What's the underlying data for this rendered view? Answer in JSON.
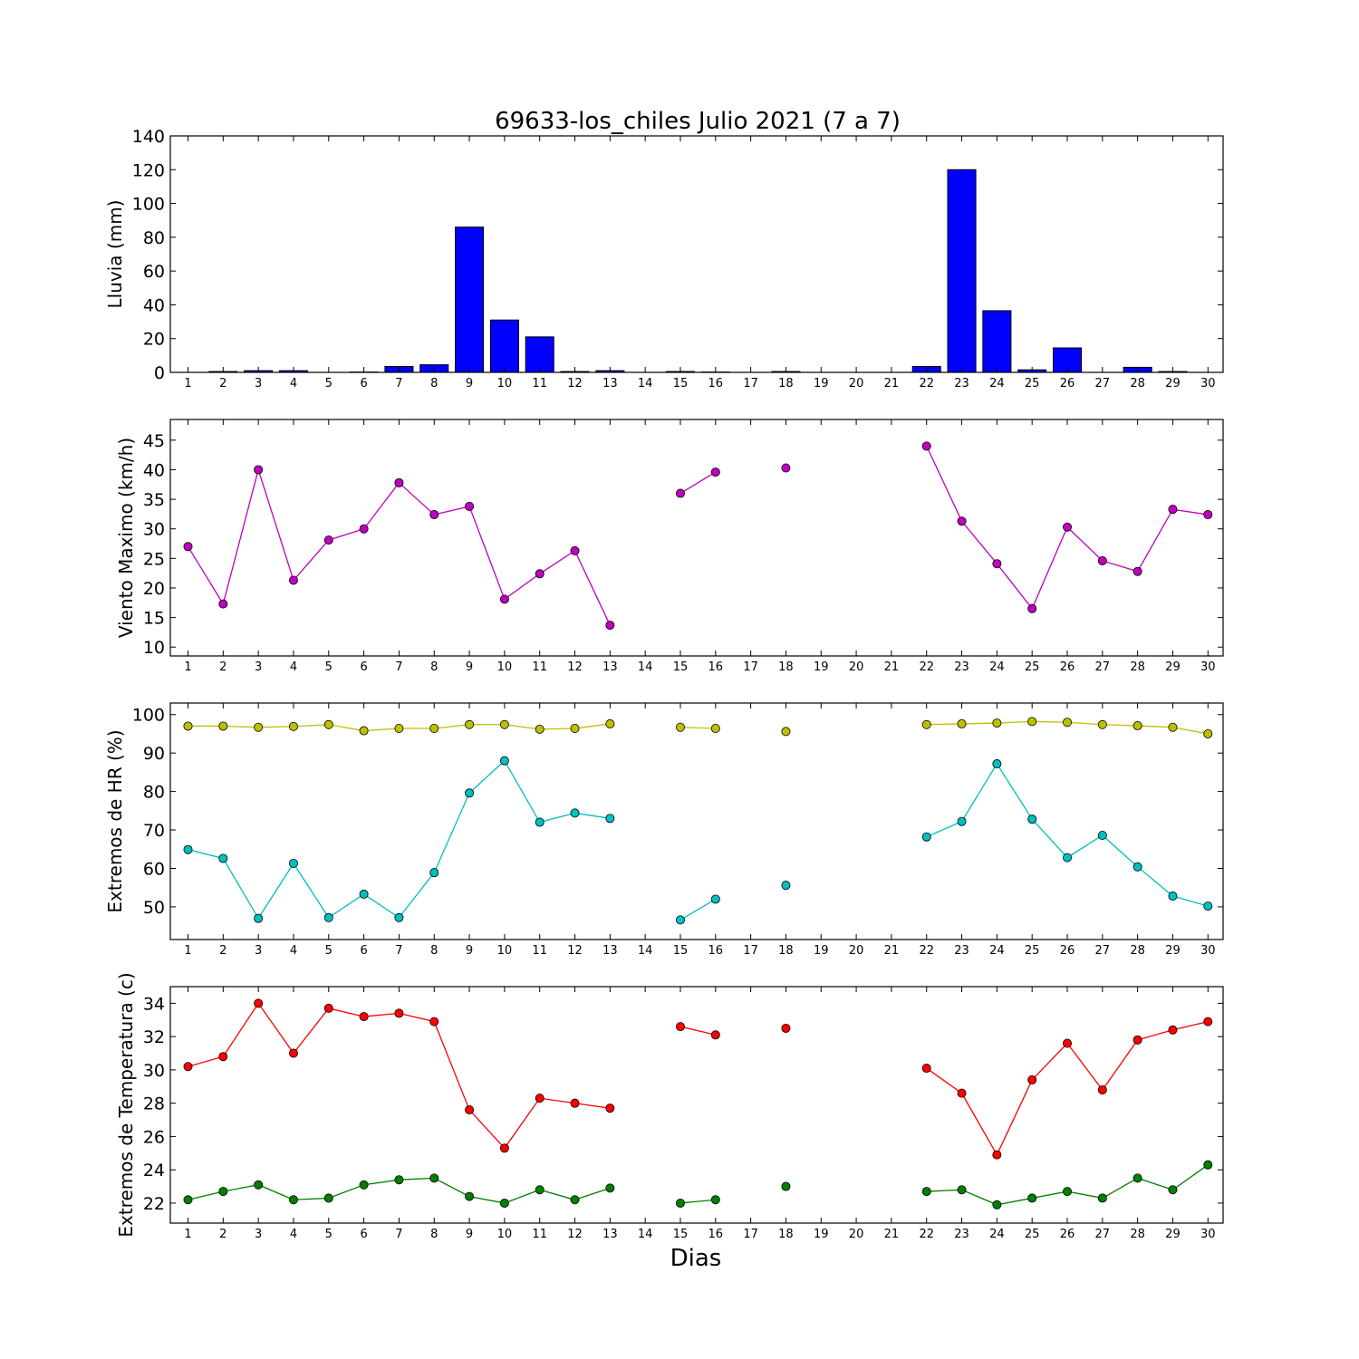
{
  "chart_data": [
    {
      "type": "bar",
      "title": "69633-los_chiles Julio 2021  (7 a 7)",
      "ylabel": "Lluvia (mm)",
      "xlabel": "",
      "categories": [
        "1",
        "2",
        "3",
        "4",
        "5",
        "6",
        "7",
        "8",
        "9",
        "10",
        "11",
        "12",
        "13",
        "14",
        "15",
        "16",
        "17",
        "18",
        "19",
        "20",
        "21",
        "22",
        "23",
        "24",
        "25",
        "26",
        "27",
        "28",
        "29",
        "30"
      ],
      "yticks": [
        0,
        20,
        40,
        60,
        80,
        100,
        120,
        140
      ],
      "ylim": [
        0,
        140
      ],
      "color": "#0000ff",
      "values": [
        0.0,
        0.5,
        1.0,
        1.0,
        0.0,
        0.2,
        3.5,
        4.5,
        86.0,
        31.0,
        21.0,
        0.5,
        1.0,
        0.0,
        0.5,
        0.2,
        0.0,
        0.5,
        0.0,
        0.0,
        0.0,
        3.5,
        120.0,
        36.5,
        1.5,
        14.5,
        0.0,
        3.0,
        0.5,
        0.0
      ]
    },
    {
      "type": "line",
      "title": "",
      "ylabel": "Viento Maximo (km/h)",
      "xlabel": "",
      "categories": [
        "1",
        "2",
        "3",
        "4",
        "5",
        "6",
        "7",
        "8",
        "9",
        "10",
        "11",
        "12",
        "13",
        "14",
        "15",
        "16",
        "17",
        "18",
        "19",
        "20",
        "21",
        "22",
        "23",
        "24",
        "25",
        "26",
        "27",
        "28",
        "29",
        "30"
      ],
      "yticks": [
        10,
        15,
        20,
        25,
        30,
        35,
        40,
        45
      ],
      "ylim": [
        8.5,
        48.5
      ],
      "series": [
        {
          "color": "#bf00bf",
          "values": [
            27.0,
            17.3,
            40.0,
            21.3,
            28.1,
            30.0,
            37.8,
            32.4,
            33.8,
            18.1,
            22.4,
            26.3,
            13.7,
            null,
            36.0,
            39.6,
            null,
            40.3,
            null,
            null,
            null,
            44.0,
            31.3,
            24.1,
            16.5,
            30.3,
            24.6,
            22.8,
            33.3,
            32.4
          ]
        }
      ]
    },
    {
      "type": "line",
      "title": "",
      "ylabel": "Extremos de HR (%)",
      "xlabel": "",
      "categories": [
        "1",
        "2",
        "3",
        "4",
        "5",
        "6",
        "7",
        "8",
        "9",
        "10",
        "11",
        "12",
        "13",
        "14",
        "15",
        "16",
        "17",
        "18",
        "19",
        "20",
        "21",
        "22",
        "23",
        "24",
        "25",
        "26",
        "27",
        "28",
        "29",
        "30"
      ],
      "yticks": [
        50,
        60,
        70,
        80,
        90,
        100
      ],
      "ylim": [
        41.5,
        103
      ],
      "series": [
        {
          "color": "#bfbf00",
          "values": [
            97.0,
            97.0,
            96.7,
            96.9,
            97.4,
            95.8,
            96.4,
            96.4,
            97.4,
            97.4,
            96.2,
            96.4,
            97.6,
            null,
            96.7,
            96.4,
            null,
            95.6,
            null,
            null,
            null,
            97.4,
            97.6,
            97.8,
            98.2,
            98.0,
            97.4,
            97.1,
            96.7,
            95.0
          ]
        },
        {
          "color": "#00bfbf",
          "values": [
            64.9,
            62.6,
            47.0,
            61.3,
            47.2,
            53.3,
            47.2,
            58.9,
            79.6,
            88.0,
            72.0,
            74.4,
            73.0,
            null,
            46.6,
            52.0,
            null,
            55.6,
            null,
            null,
            null,
            68.2,
            72.2,
            87.2,
            72.8,
            62.8,
            68.6,
            60.4,
            52.8,
            50.2
          ]
        }
      ]
    },
    {
      "type": "line",
      "title": "",
      "ylabel": "Extremos de Temperatura (c)",
      "xlabel": "Dias",
      "categories": [
        "1",
        "2",
        "3",
        "4",
        "5",
        "6",
        "7",
        "8",
        "9",
        "10",
        "11",
        "12",
        "13",
        "14",
        "15",
        "16",
        "17",
        "18",
        "19",
        "20",
        "21",
        "22",
        "23",
        "24",
        "25",
        "26",
        "27",
        "28",
        "29",
        "30"
      ],
      "yticks": [
        22,
        24,
        26,
        28,
        30,
        32,
        34
      ],
      "ylim": [
        20.8,
        35
      ],
      "series": [
        {
          "color": "#ff0000",
          "values": [
            30.2,
            30.8,
            34.0,
            31.0,
            33.7,
            33.2,
            33.4,
            32.9,
            27.6,
            25.3,
            28.3,
            28.0,
            27.7,
            null,
            32.6,
            32.1,
            null,
            32.5,
            null,
            null,
            null,
            30.1,
            28.6,
            24.9,
            29.4,
            31.6,
            28.8,
            31.8,
            32.4,
            32.9
          ]
        },
        {
          "color": "#007f00",
          "values": [
            22.2,
            22.7,
            23.1,
            22.2,
            22.3,
            23.1,
            23.4,
            23.5,
            22.4,
            22.0,
            22.8,
            22.2,
            22.9,
            null,
            22.0,
            22.2,
            null,
            23.0,
            null,
            null,
            null,
            22.7,
            22.8,
            21.9,
            22.3,
            22.7,
            22.3,
            23.5,
            22.8,
            24.3
          ]
        }
      ]
    }
  ]
}
